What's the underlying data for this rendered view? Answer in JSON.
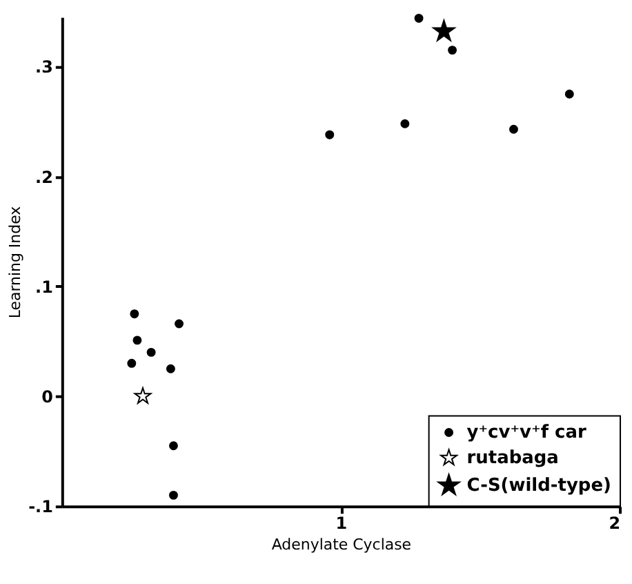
{
  "chart_data": {
    "type": "scatter",
    "xlabel": "Adenylate Cyclase",
    "ylabel": "Learning Index",
    "xlim": [
      0,
      2
    ],
    "ylim": [
      -0.1,
      0.345
    ],
    "xticks": [
      1,
      2
    ],
    "yticks": [
      {
        "value": -0.1,
        "label": "-.1"
      },
      {
        "value": 0,
        "label": "0"
      },
      {
        "value": 0.1,
        "label": ".1"
      },
      {
        "value": 0.2,
        "label": ".2"
      },
      {
        "value": 0.3,
        "label": ".3"
      }
    ],
    "grid": false,
    "legend": "bottom right",
    "series": [
      {
        "name": "y⁺cv⁺v⁺f car",
        "color": "#000000",
        "marker": "circle",
        "x": [
          0.26,
          0.42,
          0.27,
          0.32,
          0.25,
          0.39,
          0.4,
          0.4,
          1.28,
          1.4,
          1.82,
          1.23,
          1.62,
          0.96
        ],
        "values": [
          0.075,
          0.066,
          0.051,
          0.04,
          0.03,
          0.025,
          -0.045,
          -0.09,
          0.344,
          0.315,
          0.275,
          0.248,
          0.243,
          0.238
        ]
      },
      {
        "name": "rutabaga",
        "color": "#ffffff",
        "marker": "star",
        "x": [
          0.29
        ],
        "values": [
          0.0
        ]
      },
      {
        "name": "C-S(wild-type)",
        "color": "#000000",
        "marker": "star",
        "x": [
          1.37
        ],
        "values": [
          0.332
        ]
      }
    ]
  }
}
